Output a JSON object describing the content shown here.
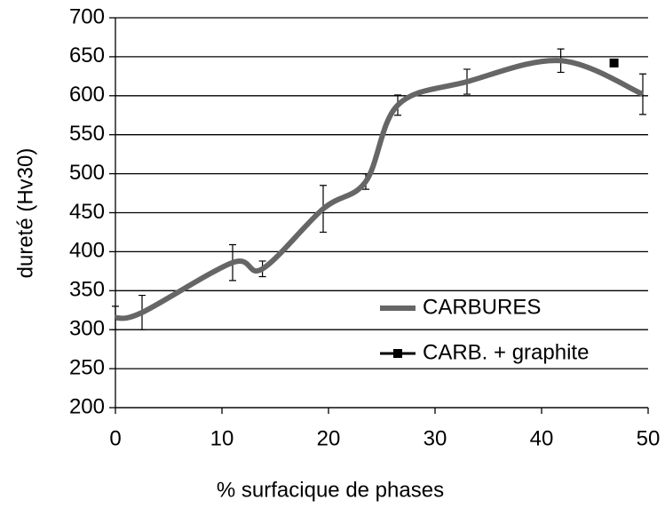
{
  "chart_data": {
    "type": "line",
    "xlabel": "% surfacique de phases",
    "ylabel": "dureté (Hv30)",
    "xlim": [
      0,
      50
    ],
    "xticks": [
      0,
      10,
      20,
      30,
      40,
      50
    ],
    "ylim": [
      200,
      700
    ],
    "yticks": [
      200,
      250,
      300,
      350,
      400,
      450,
      500,
      550,
      600,
      650,
      700
    ],
    "grid": true,
    "legend": "lower right",
    "series": [
      {
        "name": "CARBURES",
        "color": "#666666",
        "x": [
          0,
          2.5,
          11,
          13.8,
          19.5,
          23.5,
          26.5,
          33,
          41.8,
          49.5
        ],
        "values": [
          315,
          322,
          386,
          378,
          455,
          490,
          588,
          618,
          645,
          602
        ],
        "errors": [
          15,
          22,
          23,
          10,
          30,
          10,
          13,
          16,
          15,
          26
        ]
      },
      {
        "name": "CARB. + graphite",
        "color": "#000000",
        "marker": "square",
        "x": [
          46.8
        ],
        "values": [
          642
        ]
      }
    ]
  }
}
